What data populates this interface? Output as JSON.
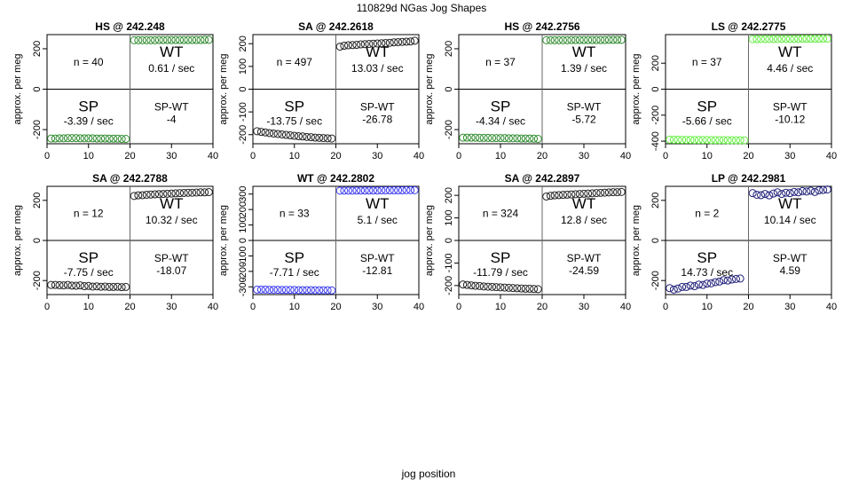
{
  "page": {
    "title": "110829d   NGas Jog Shapes",
    "xlabel": "jog position"
  },
  "chart_data": [
    {
      "type": "scatter",
      "title": "HS @ 242.248",
      "ylabel": "approx. per meg",
      "xlim": [
        0,
        40
      ],
      "ylim": [
        -270,
        270
      ],
      "xticks": [
        0,
        10,
        20,
        30,
        40
      ],
      "yticks": [
        -200,
        0,
        200
      ],
      "n_label": "n = 40",
      "wt_label": "WT",
      "wt_rate": "0.61 / sec",
      "sp_label": "SP",
      "sp_rate": "-3.39 / sec",
      "spwt_label": "SP-WT",
      "spwt_value": "-4",
      "series": [
        {
          "name": "SP",
          "color": "#2e8b2e",
          "x": [
            1,
            2,
            3,
            4,
            5,
            6,
            7,
            8,
            9,
            10,
            11,
            12,
            13,
            14,
            15,
            16,
            17,
            18,
            19
          ],
          "y": [
            -244,
            -244,
            -243,
            -243,
            -242,
            -242,
            -242,
            -243,
            -243,
            -243,
            -243,
            -244,
            -244,
            -244,
            -245,
            -245,
            -245,
            -246,
            -246
          ]
        },
        {
          "name": "WT",
          "color": "#2e8b2e",
          "x": [
            21,
            22,
            23,
            24,
            25,
            26,
            27,
            28,
            29,
            30,
            31,
            32,
            33,
            34,
            35,
            36,
            37,
            38,
            39
          ],
          "y": [
            242,
            242,
            242,
            242,
            242,
            242,
            243,
            243,
            243,
            243,
            243,
            243,
            243,
            243,
            243,
            243,
            243,
            244,
            244
          ]
        }
      ]
    },
    {
      "type": "scatter",
      "title": "SA @ 242.2618",
      "ylabel": "approx. per meg",
      "xlim": [
        0,
        40
      ],
      "ylim": [
        -240,
        240
      ],
      "xticks": [
        0,
        10,
        20,
        30,
        40
      ],
      "yticks": [
        -200,
        -100,
        0,
        100,
        200
      ],
      "n_label": "n = 497",
      "wt_label": "WT",
      "wt_rate": "13.03 / sec",
      "sp_label": "SP",
      "sp_rate": "-13.75 / sec",
      "spwt_label": "SP-WT",
      "spwt_value": "-26.78",
      "series": [
        {
          "name": "SP",
          "color": "#222222",
          "x": [
            1,
            2,
            3,
            4,
            5,
            6,
            7,
            8,
            9,
            10,
            11,
            12,
            13,
            14,
            15,
            16,
            17,
            18,
            19
          ],
          "y": [
            -185,
            -188,
            -190,
            -193,
            -195,
            -197,
            -199,
            -201,
            -203,
            -205,
            -207,
            -208,
            -210,
            -211,
            -213,
            -214,
            -215,
            -216,
            -217
          ]
        },
        {
          "name": "WT",
          "color": "#222222",
          "x": [
            21,
            22,
            23,
            24,
            25,
            26,
            27,
            28,
            29,
            30,
            31,
            32,
            33,
            34,
            35,
            36,
            37,
            38,
            39
          ],
          "y": [
            187,
            191,
            193,
            194,
            195,
            197,
            198,
            199,
            200,
            201,
            202,
            203,
            204,
            206,
            207,
            208,
            209,
            210,
            213
          ]
        }
      ]
    },
    {
      "type": "scatter",
      "title": "HS @ 242.2756",
      "ylabel": "approx. per meg",
      "xlim": [
        0,
        40
      ],
      "ylim": [
        -270,
        270
      ],
      "xticks": [
        0,
        10,
        20,
        30,
        40
      ],
      "yticks": [
        -200,
        0,
        200
      ],
      "n_label": "n = 37",
      "wt_label": "WT",
      "wt_rate": "1.39 / sec",
      "sp_label": "SP",
      "sp_rate": "-4.34 / sec",
      "spwt_label": "SP-WT",
      "spwt_value": "-5.72",
      "series": [
        {
          "name": "SP",
          "color": "#2e8b2e",
          "x": [
            1,
            2,
            3,
            4,
            5,
            6,
            7,
            8,
            9,
            10,
            11,
            12,
            13,
            14,
            15,
            16,
            17,
            18,
            19
          ],
          "y": [
            -240,
            -240,
            -240,
            -240,
            -241,
            -241,
            -241,
            -242,
            -242,
            -242,
            -242,
            -243,
            -243,
            -243,
            -244,
            -244,
            -244,
            -245,
            -246
          ]
        },
        {
          "name": "WT",
          "color": "#2e8b2e",
          "x": [
            21,
            22,
            23,
            24,
            25,
            26,
            27,
            28,
            29,
            30,
            31,
            32,
            33,
            34,
            35,
            36,
            37,
            38,
            39
          ],
          "y": [
            242,
            242,
            242,
            242,
            242,
            242,
            243,
            243,
            243,
            243,
            243,
            243,
            243,
            243,
            243,
            244,
            244,
            244,
            244
          ]
        }
      ]
    },
    {
      "type": "scatter",
      "title": "LS @ 242.2775",
      "ylabel": "approx. per meg",
      "xlim": [
        0,
        40
      ],
      "ylim": [
        -420,
        420
      ],
      "xticks": [
        0,
        10,
        20,
        30,
        40
      ],
      "yticks": [
        -400,
        -200,
        0,
        200
      ],
      "n_label": "n = 37",
      "wt_label": "WT",
      "wt_rate": "4.46 / sec",
      "sp_label": "SP",
      "sp_rate": "-5.66 / sec",
      "spwt_label": "SP-WT",
      "spwt_value": "-10.12",
      "series": [
        {
          "name": "SP",
          "color": "#66ee44",
          "x": [
            1,
            2,
            3,
            4,
            5,
            6,
            7,
            8,
            9,
            10,
            11,
            12,
            13,
            14,
            15,
            16,
            17,
            18,
            19
          ],
          "y": [
            -388,
            -389,
            -389,
            -390,
            -390,
            -390,
            -391,
            -391,
            -391,
            -391,
            -392,
            -392,
            -392,
            -392,
            -393,
            -393,
            -393,
            -393,
            -394
          ]
        },
        {
          "name": "WT",
          "color": "#66ee44",
          "x": [
            21,
            22,
            23,
            24,
            25,
            26,
            27,
            28,
            29,
            30,
            31,
            32,
            33,
            34,
            35,
            36,
            37,
            38,
            39
          ],
          "y": [
            385,
            385,
            386,
            386,
            386,
            386,
            386,
            387,
            387,
            387,
            387,
            387,
            388,
            388,
            388,
            388,
            388,
            389,
            389
          ]
        }
      ]
    },
    {
      "type": "scatter",
      "title": "SA @ 242.2788",
      "ylabel": "approx. per meg",
      "xlim": [
        0,
        40
      ],
      "ylim": [
        -270,
        270
      ],
      "xticks": [
        0,
        10,
        20,
        30,
        40
      ],
      "yticks": [
        -200,
        0,
        200
      ],
      "n_label": "n = 12",
      "wt_label": "WT",
      "wt_rate": "10.32 / sec",
      "sp_label": "SP",
      "sp_rate": "-7.75 / sec",
      "spwt_label": "SP-WT",
      "spwt_value": "-18.07",
      "series": [
        {
          "name": "SP",
          "color": "#222222",
          "x": [
            1,
            2,
            3,
            4,
            5,
            6,
            7,
            8,
            9,
            10,
            11,
            12,
            13,
            14,
            15,
            16,
            17,
            18,
            19
          ],
          "y": [
            -222,
            -222,
            -223,
            -224,
            -222,
            -225,
            -226,
            -224,
            -228,
            -227,
            -230,
            -229,
            -231,
            -230,
            -232,
            -232,
            -231,
            -233,
            -232
          ]
        },
        {
          "name": "WT",
          "color": "#222222",
          "x": [
            21,
            22,
            23,
            24,
            25,
            26,
            27,
            28,
            29,
            30,
            31,
            32,
            33,
            34,
            35,
            36,
            37,
            38,
            39
          ],
          "y": [
            222,
            225,
            226,
            228,
            229,
            230,
            231,
            232,
            233,
            234,
            235,
            236,
            237,
            238,
            238,
            239,
            240,
            240,
            241
          ]
        }
      ]
    },
    {
      "type": "scatter",
      "title": "WT @ 242.2802",
      "ylabel": "approx. per meg",
      "xlim": [
        0,
        40
      ],
      "ylim": [
        -350,
        350
      ],
      "xticks": [
        0,
        10,
        20,
        30,
        40
      ],
      "yticks": [
        -300,
        -200,
        -100,
        0,
        100,
        200,
        300
      ],
      "n_label": "n = 33",
      "wt_label": "WT",
      "wt_rate": "5.1 / sec",
      "sp_label": "SP",
      "sp_rate": "-7.71 / sec",
      "spwt_label": "SP-WT",
      "spwt_value": "-12.81",
      "series": [
        {
          "name": "SP",
          "color": "#3a3af0",
          "x": [
            1,
            2,
            3,
            4,
            5,
            6,
            7,
            8,
            9,
            10,
            11,
            12,
            13,
            14,
            15,
            16,
            17,
            18,
            19
          ],
          "y": [
            -318,
            -318,
            -318,
            -319,
            -319,
            -319,
            -320,
            -320,
            -320,
            -320,
            -321,
            -321,
            -321,
            -321,
            -322,
            -322,
            -322,
            -322,
            -323
          ]
        },
        {
          "name": "WT",
          "color": "#3a3af0",
          "x": [
            21,
            22,
            23,
            24,
            25,
            26,
            27,
            28,
            29,
            30,
            31,
            32,
            33,
            34,
            35,
            36,
            37,
            38,
            39
          ],
          "y": [
            322,
            322,
            322,
            322,
            323,
            323,
            323,
            323,
            323,
            323,
            324,
            324,
            324,
            324,
            324,
            324,
            325,
            325,
            325
          ]
        }
      ]
    },
    {
      "type": "scatter",
      "title": "SA @ 242.2897",
      "ylabel": "approx. per meg",
      "xlim": [
        0,
        40
      ],
      "ylim": [
        -240,
        240
      ],
      "xticks": [
        0,
        10,
        20,
        30,
        40
      ],
      "yticks": [
        -200,
        -100,
        0,
        100,
        200
      ],
      "n_label": "n = 324",
      "wt_label": "WT",
      "wt_rate": "12.8 / sec",
      "sp_label": "SP",
      "sp_rate": "-11.79 / sec",
      "spwt_label": "SP-WT",
      "spwt_value": "-24.59",
      "series": [
        {
          "name": "SP",
          "color": "#222222",
          "x": [
            1,
            2,
            3,
            4,
            5,
            6,
            7,
            8,
            9,
            10,
            11,
            12,
            13,
            14,
            15,
            16,
            17,
            18,
            19
          ],
          "y": [
            -195,
            -197,
            -199,
            -201,
            -202,
            -204,
            -205,
            -206,
            -207,
            -208,
            -209,
            -210,
            -211,
            -212,
            -213,
            -214,
            -214,
            -215,
            -216
          ]
        },
        {
          "name": "WT",
          "color": "#222222",
          "x": [
            21,
            22,
            23,
            24,
            25,
            26,
            27,
            28,
            29,
            30,
            31,
            32,
            33,
            34,
            35,
            36,
            37,
            38,
            39
          ],
          "y": [
            195,
            198,
            200,
            201,
            202,
            203,
            204,
            205,
            206,
            207,
            208,
            209,
            210,
            211,
            212,
            213,
            214,
            214,
            215
          ]
        }
      ]
    },
    {
      "type": "scatter",
      "title": "LP @ 242.2981",
      "ylabel": "approx. per meg",
      "xlim": [
        0,
        40
      ],
      "ylim": [
        -270,
        270
      ],
      "xticks": [
        0,
        10,
        20,
        30,
        40
      ],
      "yticks": [
        -200,
        0,
        200
      ],
      "n_label": "n = 2",
      "wt_label": "WT",
      "wt_rate": "10.14 / sec",
      "sp_label": "SP",
      "sp_rate": "14.73 / sec",
      "spwt_label": "SP-WT",
      "spwt_value": "4.59",
      "series": [
        {
          "name": "SP",
          "color": "#1f1f7a",
          "x": [
            1,
            2,
            3,
            4,
            5,
            6,
            7,
            8,
            9,
            10,
            11,
            12,
            13,
            14,
            15,
            16,
            17,
            18
          ],
          "y": [
            -238,
            -245,
            -240,
            -232,
            -232,
            -225,
            -228,
            -220,
            -222,
            -215,
            -214,
            -208,
            -205,
            -198,
            -200,
            -195,
            -192,
            -190
          ]
        },
        {
          "name": "WT",
          "color": "#1f1f7a",
          "x": [
            21,
            22,
            23,
            24,
            25,
            26,
            27,
            28,
            29,
            30,
            31,
            32,
            33,
            34,
            35,
            36,
            37,
            38,
            39
          ],
          "y": [
            236,
            228,
            226,
            232,
            225,
            234,
            240,
            232,
            238,
            236,
            242,
            240,
            246,
            244,
            248,
            242,
            250,
            252,
            254
          ]
        }
      ]
    }
  ]
}
